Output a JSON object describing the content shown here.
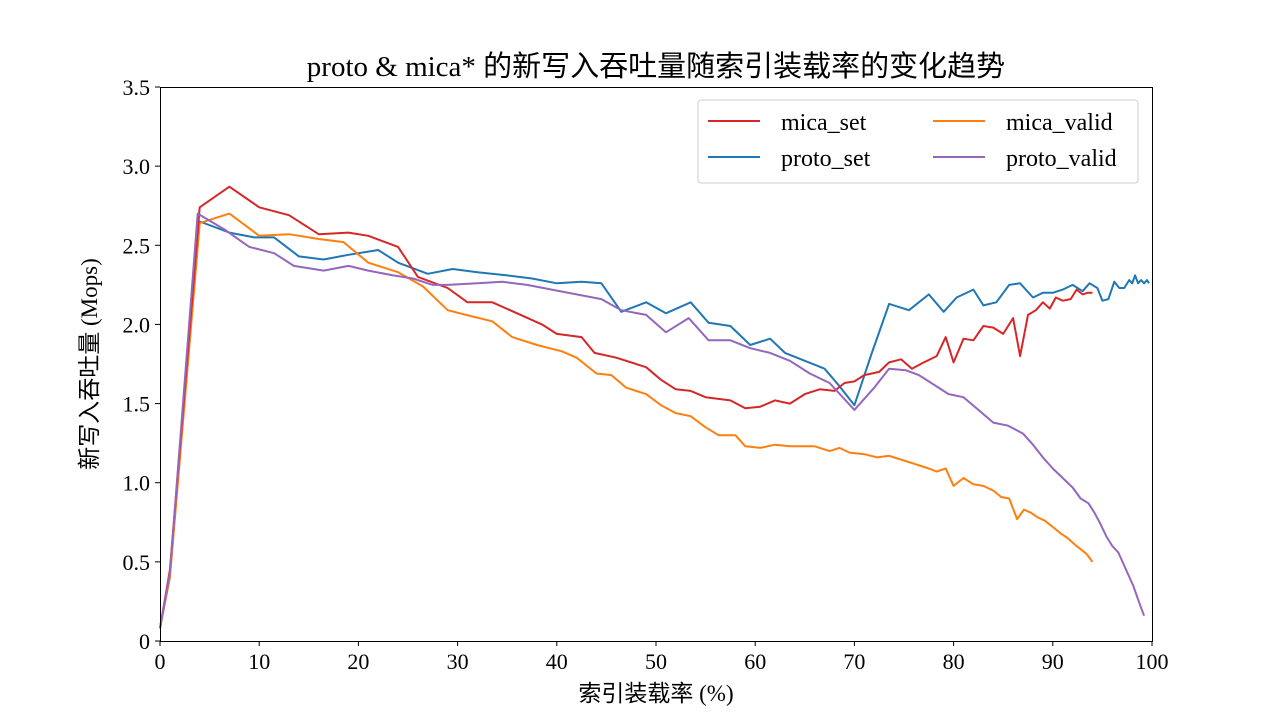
{
  "chart_data": {
    "type": "line",
    "title": "proto & mica* 的新写入吞吐量随索引装载率的变化趋势",
    "xlabel": "索引装载率 (%)",
    "ylabel": "新写入吞吐量 (Mops)",
    "xlim": [
      0,
      100
    ],
    "ylim": [
      0,
      3.5
    ],
    "xticks": [
      0,
      10,
      20,
      30,
      40,
      50,
      60,
      70,
      80,
      90,
      100
    ],
    "xtick_labels": [
      "0",
      "10",
      "20",
      "30",
      "40",
      "50",
      "60",
      "70",
      "80",
      "90",
      "100"
    ],
    "yticks": [
      0,
      0.5,
      1.0,
      1.5,
      2.0,
      2.5,
      3.0,
      3.5
    ],
    "ytick_labels": [
      "0",
      "0.5",
      "1.0",
      "1.5",
      "2.0",
      "2.5",
      "3.0",
      "3.5"
    ],
    "grid": false,
    "legend": {
      "position": "top-right",
      "columns": 2
    },
    "series": [
      {
        "name": "mica_set",
        "color": "#d62728",
        "points": [
          [
            0,
            0.08
          ],
          [
            1,
            0.45
          ],
          [
            4,
            2.74
          ],
          [
            7,
            2.87
          ],
          [
            10,
            2.74
          ],
          [
            13,
            2.69
          ],
          [
            16,
            2.57
          ],
          [
            19,
            2.58
          ],
          [
            21,
            2.56
          ],
          [
            24,
            2.49
          ],
          [
            26,
            2.3
          ],
          [
            29,
            2.23
          ],
          [
            31,
            2.14
          ],
          [
            33.5,
            2.14
          ],
          [
            36,
            2.07
          ],
          [
            38.5,
            2.0
          ],
          [
            40,
            1.94
          ],
          [
            42.5,
            1.92
          ],
          [
            43.8,
            1.82
          ],
          [
            46,
            1.79
          ],
          [
            49,
            1.73
          ],
          [
            50.5,
            1.65
          ],
          [
            52,
            1.59
          ],
          [
            53.5,
            1.58
          ],
          [
            55,
            1.54
          ],
          [
            57.5,
            1.52
          ],
          [
            59,
            1.47
          ],
          [
            60.5,
            1.48
          ],
          [
            62,
            1.52
          ],
          [
            63.5,
            1.5
          ],
          [
            65,
            1.56
          ],
          [
            66.5,
            1.59
          ],
          [
            68,
            1.58
          ],
          [
            69,
            1.63
          ],
          [
            70,
            1.64
          ],
          [
            71,
            1.68
          ],
          [
            72.5,
            1.7
          ],
          [
            73.5,
            1.76
          ],
          [
            74.7,
            1.78
          ],
          [
            75.8,
            1.72
          ],
          [
            77,
            1.76
          ],
          [
            78.3,
            1.8
          ],
          [
            79.2,
            1.92
          ],
          [
            80,
            1.76
          ],
          [
            81,
            1.91
          ],
          [
            82,
            1.9
          ],
          [
            83,
            1.99
          ],
          [
            84,
            1.98
          ],
          [
            85,
            1.94
          ],
          [
            86,
            2.04
          ],
          [
            86.7,
            1.8
          ],
          [
            87.5,
            2.06
          ],
          [
            88.3,
            2.09
          ],
          [
            89,
            2.14
          ],
          [
            89.7,
            2.1
          ],
          [
            90.3,
            2.17
          ],
          [
            91,
            2.15
          ],
          [
            91.8,
            2.16
          ],
          [
            92.4,
            2.22
          ],
          [
            93,
            2.19
          ],
          [
            93.5,
            2.2
          ],
          [
            94,
            2.2
          ]
        ]
      },
      {
        "name": "mica_valid",
        "color": "#ff7f0e",
        "points": [
          [
            0,
            0.08
          ],
          [
            1,
            0.4
          ],
          [
            4,
            2.64
          ],
          [
            7,
            2.7
          ],
          [
            10,
            2.56
          ],
          [
            13,
            2.57
          ],
          [
            16,
            2.54
          ],
          [
            18.5,
            2.52
          ],
          [
            21,
            2.39
          ],
          [
            24,
            2.33
          ],
          [
            26.5,
            2.24
          ],
          [
            29,
            2.09
          ],
          [
            31.5,
            2.05
          ],
          [
            33.5,
            2.02
          ],
          [
            35.5,
            1.92
          ],
          [
            38,
            1.87
          ],
          [
            40.5,
            1.83
          ],
          [
            42,
            1.79
          ],
          [
            44,
            1.69
          ],
          [
            45.5,
            1.68
          ],
          [
            47,
            1.6
          ],
          [
            49,
            1.56
          ],
          [
            50.5,
            1.49
          ],
          [
            52,
            1.44
          ],
          [
            53.5,
            1.42
          ],
          [
            55,
            1.35
          ],
          [
            56.3,
            1.3
          ],
          [
            58,
            1.3
          ],
          [
            59,
            1.23
          ],
          [
            60.5,
            1.22
          ],
          [
            62,
            1.24
          ],
          [
            63.5,
            1.23
          ],
          [
            66,
            1.23
          ],
          [
            67.5,
            1.2
          ],
          [
            68.5,
            1.22
          ],
          [
            69.5,
            1.19
          ],
          [
            71,
            1.18
          ],
          [
            72.3,
            1.16
          ],
          [
            73.5,
            1.17
          ],
          [
            74.5,
            1.15
          ],
          [
            76,
            1.12
          ],
          [
            77.5,
            1.09
          ],
          [
            78.3,
            1.07
          ],
          [
            79.2,
            1.09
          ],
          [
            80,
            0.98
          ],
          [
            81,
            1.03
          ],
          [
            82,
            0.99
          ],
          [
            83,
            0.98
          ],
          [
            84,
            0.95
          ],
          [
            84.8,
            0.91
          ],
          [
            85.6,
            0.9
          ],
          [
            86.4,
            0.77
          ],
          [
            87.1,
            0.83
          ],
          [
            87.8,
            0.81
          ],
          [
            88.5,
            0.78
          ],
          [
            89.2,
            0.76
          ],
          [
            90,
            0.72
          ],
          [
            90.8,
            0.68
          ],
          [
            91.5,
            0.65
          ],
          [
            92.2,
            0.61
          ],
          [
            92.8,
            0.58
          ],
          [
            93.4,
            0.55
          ],
          [
            94,
            0.5
          ]
        ]
      },
      {
        "name": "proto_set",
        "color": "#1f77b4",
        "points": [
          [
            0,
            0.08
          ],
          [
            1,
            0.43
          ],
          [
            4,
            2.65
          ],
          [
            7,
            2.58
          ],
          [
            9.5,
            2.55
          ],
          [
            11.5,
            2.55
          ],
          [
            14,
            2.43
          ],
          [
            16.5,
            2.41
          ],
          [
            19,
            2.44
          ],
          [
            22,
            2.47
          ],
          [
            24,
            2.39
          ],
          [
            27,
            2.32
          ],
          [
            29.5,
            2.35
          ],
          [
            32,
            2.33
          ],
          [
            35,
            2.31
          ],
          [
            37.5,
            2.29
          ],
          [
            40,
            2.26
          ],
          [
            42.5,
            2.27
          ],
          [
            44.5,
            2.26
          ],
          [
            46.5,
            2.08
          ],
          [
            49,
            2.14
          ],
          [
            51,
            2.07
          ],
          [
            53.5,
            2.14
          ],
          [
            55.3,
            2.01
          ],
          [
            57.5,
            1.99
          ],
          [
            59.5,
            1.87
          ],
          [
            61.5,
            1.91
          ],
          [
            63,
            1.82
          ],
          [
            65,
            1.77
          ],
          [
            67,
            1.72
          ],
          [
            68.5,
            1.61
          ],
          [
            70,
            1.49
          ],
          [
            71.7,
            1.81
          ],
          [
            73.5,
            2.13
          ],
          [
            75.5,
            2.09
          ],
          [
            77.5,
            2.19
          ],
          [
            79,
            2.08
          ],
          [
            80.3,
            2.17
          ],
          [
            82,
            2.22
          ],
          [
            83,
            2.12
          ],
          [
            84.3,
            2.14
          ],
          [
            85.6,
            2.25
          ],
          [
            86.7,
            2.26
          ],
          [
            88,
            2.17
          ],
          [
            89,
            2.2
          ],
          [
            90,
            2.2
          ],
          [
            91,
            2.22
          ],
          [
            92,
            2.25
          ],
          [
            93,
            2.21
          ],
          [
            93.7,
            2.26
          ],
          [
            94.5,
            2.23
          ],
          [
            95,
            2.15
          ],
          [
            95.6,
            2.16
          ],
          [
            96.2,
            2.27
          ],
          [
            96.7,
            2.23
          ],
          [
            97.2,
            2.23
          ],
          [
            97.7,
            2.28
          ],
          [
            98,
            2.26
          ],
          [
            98.3,
            2.31
          ],
          [
            98.6,
            2.26
          ],
          [
            98.9,
            2.28
          ],
          [
            99.2,
            2.26
          ],
          [
            99.5,
            2.28
          ],
          [
            99.7,
            2.26
          ]
        ]
      },
      {
        "name": "proto_valid",
        "color": "#9467bd",
        "points": [
          [
            0,
            0.08
          ],
          [
            1,
            0.43
          ],
          [
            3.8,
            2.7
          ],
          [
            6.5,
            2.6
          ],
          [
            9,
            2.49
          ],
          [
            11.5,
            2.45
          ],
          [
            13.5,
            2.37
          ],
          [
            16.5,
            2.34
          ],
          [
            19,
            2.37
          ],
          [
            21,
            2.34
          ],
          [
            23.5,
            2.31
          ],
          [
            25.5,
            2.29
          ],
          [
            27.5,
            2.25
          ],
          [
            29,
            2.25
          ],
          [
            32,
            2.26
          ],
          [
            34.5,
            2.27
          ],
          [
            37,
            2.25
          ],
          [
            39.5,
            2.22
          ],
          [
            42,
            2.19
          ],
          [
            44.5,
            2.16
          ],
          [
            46.5,
            2.09
          ],
          [
            49,
            2.06
          ],
          [
            51,
            1.95
          ],
          [
            53.3,
            2.04
          ],
          [
            55.3,
            1.9
          ],
          [
            57.5,
            1.9
          ],
          [
            59.5,
            1.85
          ],
          [
            61.5,
            1.82
          ],
          [
            63.5,
            1.77
          ],
          [
            65.5,
            1.69
          ],
          [
            67.5,
            1.63
          ],
          [
            70,
            1.46
          ],
          [
            72,
            1.6
          ],
          [
            73.5,
            1.72
          ],
          [
            75.2,
            1.71
          ],
          [
            76.5,
            1.68
          ],
          [
            78,
            1.62
          ],
          [
            79.5,
            1.56
          ],
          [
            81,
            1.54
          ],
          [
            82.5,
            1.46
          ],
          [
            84,
            1.38
          ],
          [
            85.5,
            1.36
          ],
          [
            87,
            1.31
          ],
          [
            88,
            1.24
          ],
          [
            89,
            1.16
          ],
          [
            90,
            1.09
          ],
          [
            91,
            1.03
          ],
          [
            92,
            0.97
          ],
          [
            92.8,
            0.9
          ],
          [
            93.6,
            0.87
          ],
          [
            94.2,
            0.81
          ],
          [
            94.8,
            0.74
          ],
          [
            95.4,
            0.66
          ],
          [
            96,
            0.6
          ],
          [
            96.6,
            0.56
          ],
          [
            97.1,
            0.49
          ],
          [
            97.6,
            0.42
          ],
          [
            98.1,
            0.35
          ],
          [
            98.5,
            0.28
          ],
          [
            98.9,
            0.21
          ],
          [
            99.2,
            0.16
          ]
        ]
      }
    ]
  }
}
